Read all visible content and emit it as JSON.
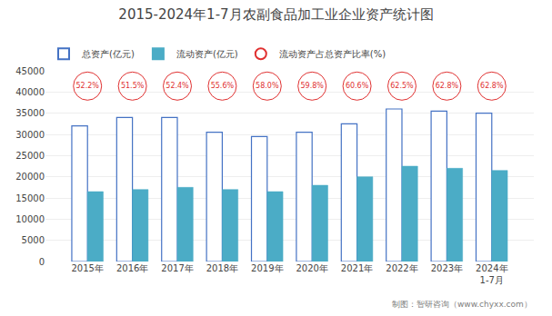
{
  "chart_data": {
    "type": "bar",
    "title": "2015-2024年1-7月农副食品加工业企业资产统计图",
    "categories": [
      "2015年",
      "2016年",
      "2017年",
      "2018年",
      "2019年",
      "2020年",
      "2021年",
      "2022年",
      "2023年",
      "2024年\n1-7月"
    ],
    "series": [
      {
        "name": "总资产(亿元)",
        "type": "bar",
        "color": "#4472C4",
        "marker": "hollow",
        "values": [
          32000,
          34000,
          34000,
          30500,
          29500,
          30500,
          32500,
          36000,
          35500,
          35000
        ]
      },
      {
        "name": "流动资产(亿元)",
        "type": "bar",
        "color": "#4BACC6",
        "values": [
          16500,
          17000,
          17500,
          17000,
          16500,
          18000,
          20000,
          22500,
          22000,
          21500
        ]
      },
      {
        "name": "流动资产占总资产比率(%)",
        "type": "scatter",
        "color": "#E03030",
        "marker": "circle",
        "values": [
          52.2,
          51.5,
          52.4,
          55.6,
          58.0,
          59.8,
          60.6,
          62.5,
          62.8,
          62.8
        ],
        "value_labels": [
          "52.2%",
          "51.5%",
          "52.4%",
          "55.6%",
          "58.0%",
          "59.8%",
          "60.6%",
          "62.5%",
          "62.8%",
          "62.8%"
        ]
      }
    ],
    "ylim": [
      0,
      45000
    ],
    "yticks": [
      0,
      5000,
      10000,
      15000,
      20000,
      25000,
      30000,
      35000,
      40000,
      45000
    ],
    "grid": true,
    "legend": "top",
    "annotations": [
      "制图：智研咨询（www.chyxx.com）"
    ]
  }
}
